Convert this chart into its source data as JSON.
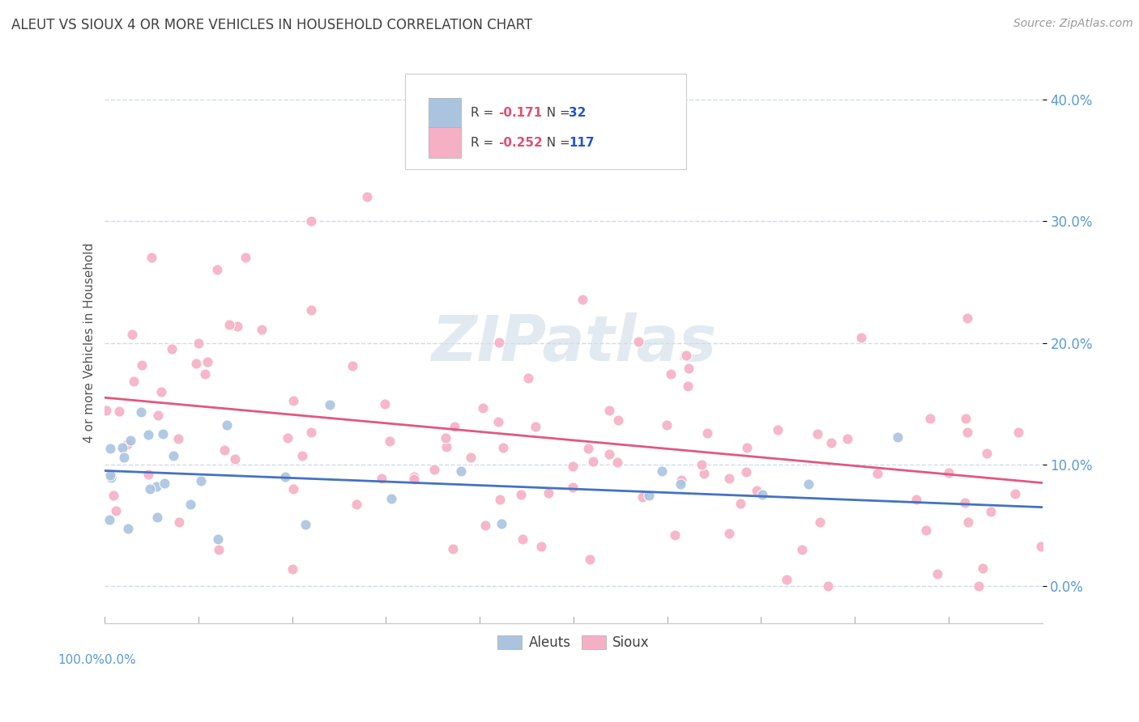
{
  "title": "ALEUT VS SIOUX 4 OR MORE VEHICLES IN HOUSEHOLD CORRELATION CHART",
  "source": "Source: ZipAtlas.com",
  "ylabel": "4 or more Vehicles in Household",
  "aleut_color": "#aac4e0",
  "sioux_color": "#f5b0c5",
  "aleut_line_color": "#4472c4",
  "sioux_line_color": "#e05880",
  "bg_color": "#ffffff",
  "grid_color": "#d0dce8",
  "title_color": "#404040",
  "axis_label_color": "#5b9bd5",
  "legend_r_color": "#e05070",
  "legend_n_color": "#2255cc",
  "watermark_color": "#d0dce8",
  "legend_r_aleut": "-0.171",
  "legend_n_aleut": "32",
  "legend_r_sioux": "-0.252",
  "legend_n_sioux": "117",
  "xlim": [
    0,
    100
  ],
  "ylim": [
    -3,
    43
  ],
  "ytick_vals": [
    0,
    10,
    20,
    30,
    40
  ],
  "ytick_labels": [
    "0.0%",
    "10.0%",
    "20.0%",
    "30.0%",
    "40.0%"
  ],
  "aleut_reg_x0": 0,
  "aleut_reg_y0": 9.5,
  "aleut_reg_x1": 100,
  "aleut_reg_y1": 6.5,
  "sioux_reg_x0": 0,
  "sioux_reg_y0": 15.5,
  "sioux_reg_x1": 100,
  "sioux_reg_y1": 8.5
}
